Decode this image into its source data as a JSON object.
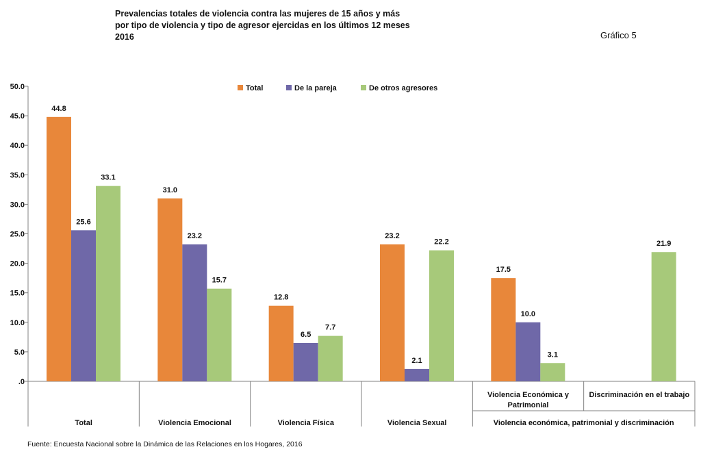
{
  "header": {
    "title_lines": [
      "Prevalencias totales de violencia contra las mujeres de 15 años y más",
      "por tipo de violencia y tipo de agresor ejercidas en los últimos 12 meses",
      "2016"
    ],
    "figure_label": "Gráfico 5"
  },
  "footer": {
    "source": "Fuente: Encuesta Nacional sobre la Dinámica de las Relaciones en los Hogares, 2016"
  },
  "colors": {
    "Total": "#E8873A",
    "De la pareja": "#6F68A8",
    "De otros agresores": "#A7C97A"
  },
  "chart_data": {
    "type": "bar",
    "title": "Prevalencias totales de violencia contra las mujeres de 15 años y más por tipo de violencia y tipo de agresor ejercidas en los últimos 12 meses 2016",
    "xlabel": "",
    "ylabel": "",
    "ylim": [
      0,
      50
    ],
    "yticks": [
      ".0",
      "5.0",
      "10.0",
      "15.0",
      "20.0",
      "25.0",
      "30.0",
      "35.0",
      "40.0",
      "45.0",
      "50.0"
    ],
    "legend_position": "top-center",
    "grid": false,
    "categories": [
      "Total",
      "Violencia Emocional",
      "Violencia Física",
      "Violencia Sexual",
      "Violencia Económica y Patrimonial",
      "Discriminación en el trabajo"
    ],
    "category_labels": [
      [
        "Total"
      ],
      [
        "Violencia Emocional"
      ],
      [
        "Violencia Física"
      ],
      [
        "Violencia Sexual"
      ],
      [
        "Violencia Económica y",
        "Patrimonial"
      ],
      [
        "Discriminación en el trabajo"
      ]
    ],
    "group_label": "Violencia económica, patrimonial y discriminación",
    "series": [
      {
        "name": "Total",
        "values": [
          44.8,
          31.0,
          12.8,
          23.2,
          17.5,
          null
        ]
      },
      {
        "name": "De la pareja",
        "values": [
          25.6,
          23.2,
          6.5,
          2.1,
          10.0,
          null
        ]
      },
      {
        "name": "De otros agresores",
        "values": [
          33.1,
          15.7,
          7.7,
          22.2,
          3.1,
          21.9
        ]
      }
    ]
  }
}
